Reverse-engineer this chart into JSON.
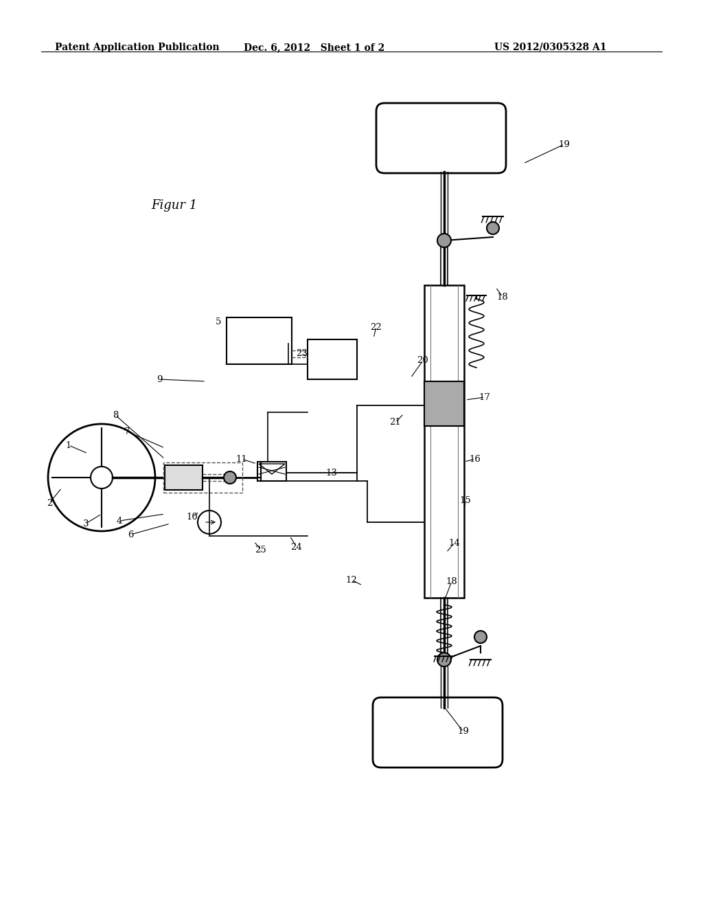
{
  "header_left": "Patent Application Publication",
  "header_center": "Dec. 6, 2012   Sheet 1 of 2",
  "header_right": "US 2012/0305328 A1",
  "figure_label": "Figur 1",
  "background_color": "#ffffff",
  "line_color": "#000000",
  "light_line_color": "#888888"
}
